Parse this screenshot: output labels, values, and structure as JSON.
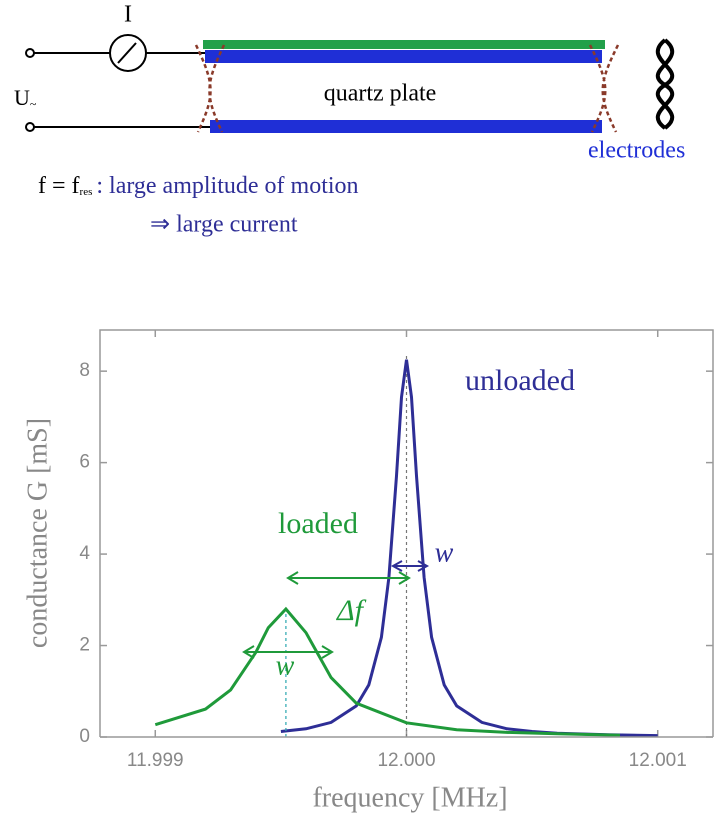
{
  "diagram": {
    "current_label": "I",
    "voltage_label": "U",
    "voltage_sub": "~",
    "plate_label": "quartz plate",
    "electrode_label": "electrodes",
    "condition_f": "f = f",
    "condition_sub": "res",
    "condition_text": ": large amplitude of motion",
    "consequence": "⇒ large current"
  },
  "chart_data": {
    "type": "line",
    "xlabel": "frequency [MHz]",
    "ylabel": "conductance G [mS]",
    "xlim": [
      11.99878,
      12.00122
    ],
    "ylim": [
      0,
      8.9
    ],
    "xticks": [
      11.999,
      {
        "value": 12,
        "label": "12.000"
      },
      12.001
    ],
    "yticks": [
      0,
      2,
      4,
      6,
      8
    ],
    "annotations": [
      "unloaded",
      "loaded",
      "Δf",
      "w",
      "w"
    ],
    "series": [
      {
        "name": "unloaded",
        "color": "#2e2e96",
        "x": [
          11.9995,
          11.9996,
          11.9997,
          11.9998,
          11.99985,
          11.9999,
          11.99993,
          11.99996,
          11.99998,
          12.0,
          12.00002,
          12.00004,
          12.00007,
          12.0001,
          12.00015,
          12.0002,
          12.0003,
          12.0004,
          12.0005,
          12.0006,
          12.0008,
          12.001
        ],
        "values": [
          0.12,
          0.18,
          0.32,
          0.68,
          1.14,
          2.18,
          3.49,
          5.71,
          7.43,
          8.25,
          7.43,
          5.71,
          3.49,
          2.18,
          1.14,
          0.68,
          0.32,
          0.18,
          0.12,
          0.08,
          0.05,
          0.03
        ]
      },
      {
        "name": "loaded",
        "color": "#1f9a3a",
        "x": [
          11.999,
          11.9992,
          11.9993,
          11.9994,
          11.99945,
          11.99952,
          11.9996,
          11.9997,
          11.9998,
          12.0,
          12.0002,
          12.0004,
          12.0006,
          12.00085
        ],
        "values": [
          0.27,
          0.61,
          1.03,
          1.85,
          2.39,
          2.8,
          2.28,
          1.3,
          0.74,
          0.31,
          0.16,
          0.1,
          0.07,
          0.04
        ]
      }
    ]
  }
}
